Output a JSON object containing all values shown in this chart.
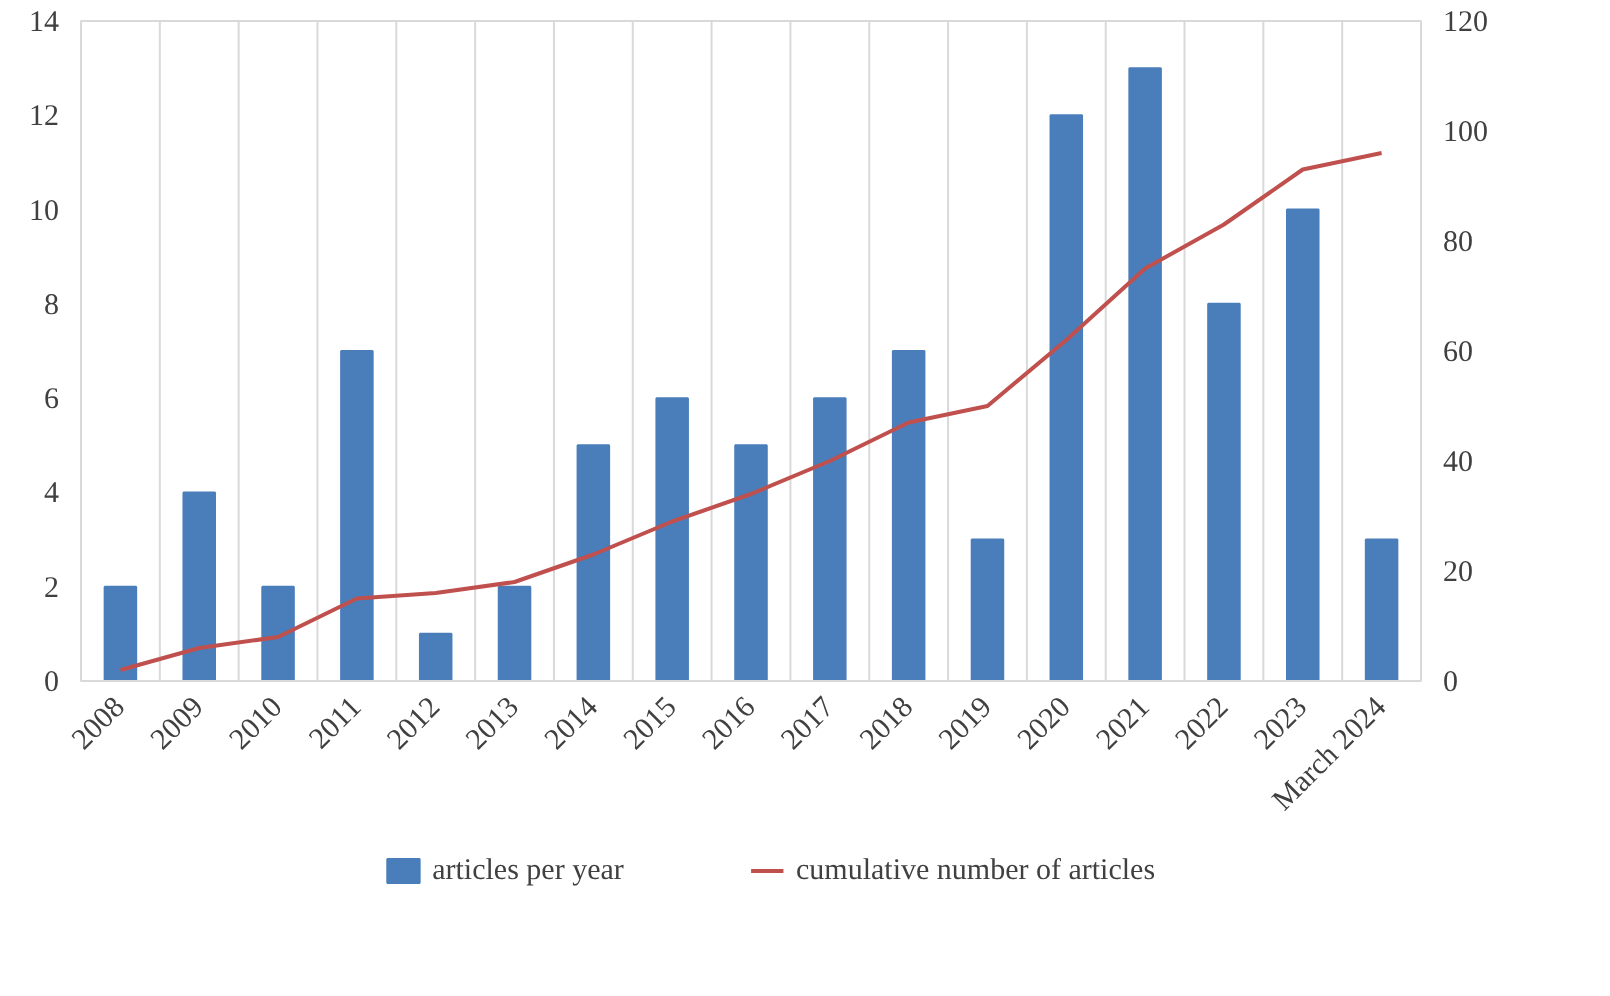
{
  "chart_data": {
    "type": "bar",
    "categories": [
      "2008",
      "2009",
      "2010",
      "2011",
      "2012",
      "2013",
      "2014",
      "2015",
      "2016",
      "2017",
      "2018",
      "2019",
      "2020",
      "2021",
      "2022",
      "2023",
      "March 2024"
    ],
    "series": [
      {
        "name": "articles per year",
        "color": "#4a7ebb",
        "values": [
          2,
          4,
          2,
          7,
          1,
          2,
          5,
          6,
          5,
          6,
          7,
          3,
          12,
          13,
          8,
          10,
          3
        ]
      },
      {
        "name": "cumulative number of articles",
        "type": "line",
        "axis": "y2",
        "color": "#c0504d",
        "values": [
          2,
          6,
          8,
          15,
          16,
          18,
          23,
          29,
          34,
          40,
          47,
          50,
          62,
          75,
          83,
          93,
          96
        ]
      }
    ],
    "ylim": [
      0,
      14
    ],
    "yticks": [
      0,
      2,
      4,
      6,
      8,
      10,
      12,
      14
    ],
    "y2lim": [
      0,
      120
    ],
    "y2ticks": [
      0,
      20,
      40,
      60,
      80,
      100,
      120
    ],
    "grid": "x",
    "legend": "bottom",
    "marker": "none",
    "line_style": "solid"
  }
}
